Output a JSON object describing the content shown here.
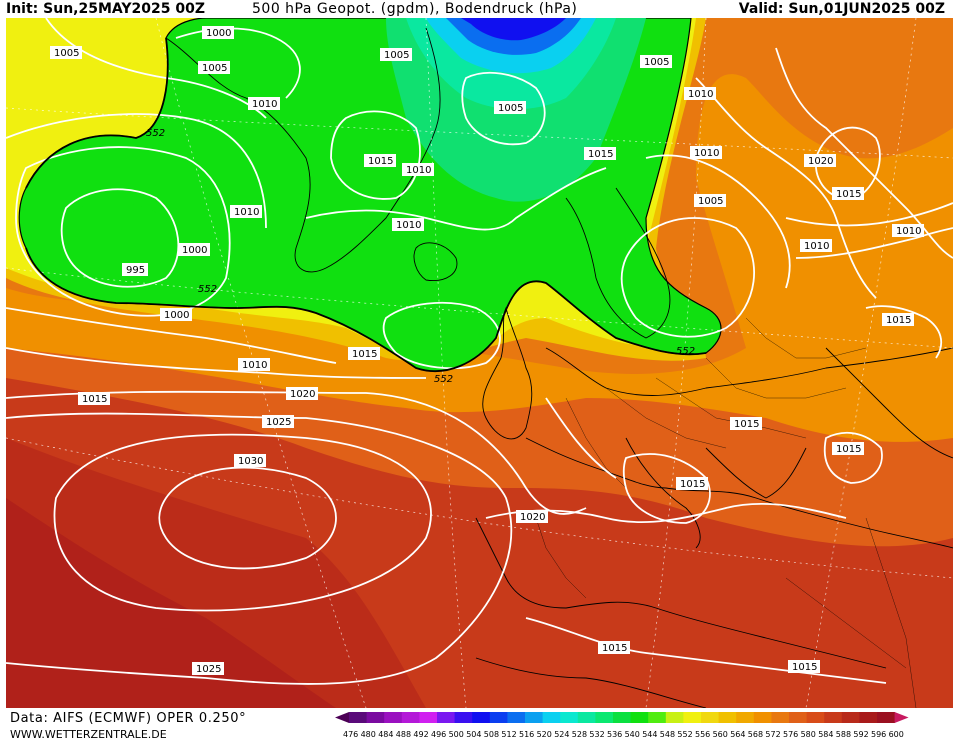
{
  "header": {
    "init": "Init: Sun,25MAY2025 00Z",
    "title": "500 hPa Geopot. (gpdm), Bodendruck (hPa)",
    "valid": "Valid: Sun,01JUN2025 00Z"
  },
  "footer": {
    "source": "Data: AIFS (ECMWF) OPER 0.250°",
    "website": "WWW.WETTERZENTRALE.DE"
  },
  "legend": {
    "values": [
      "476",
      "480",
      "484",
      "488",
      "492",
      "496",
      "500",
      "504",
      "508",
      "512",
      "516",
      "520",
      "524",
      "528",
      "532",
      "536",
      "540",
      "544",
      "548",
      "552",
      "556",
      "560",
      "564",
      "568",
      "572",
      "576",
      "580",
      "584",
      "588",
      "592",
      "596",
      "600"
    ],
    "colors": [
      "#4b0055",
      "#5a0a7a",
      "#7a0aa0",
      "#9a10c0",
      "#b418d8",
      "#d020f0",
      "#7a18f0",
      "#3a10f0",
      "#1010f0",
      "#0a3ef0",
      "#0a6ef0",
      "#0aa0f0",
      "#0ad0f0",
      "#0ae8d0",
      "#0ae8a0",
      "#0ae870",
      "#0ae040",
      "#10e010",
      "#50ec10",
      "#c8f014",
      "#f0f010",
      "#f0d810",
      "#f0c000",
      "#f0a800",
      "#f09000",
      "#e87810",
      "#e06018",
      "#d84c18",
      "#c83a1a",
      "#b82a1a",
      "#a81a1a",
      "#9a1020",
      "#c81a60"
    ]
  },
  "isobar_labels": [
    "1000",
    "1005",
    "1005",
    "1010",
    "1005",
    "1005",
    "1010",
    "1015",
    "1010",
    "1015",
    "1010",
    "1010",
    "1005",
    "1020",
    "1015",
    "1010",
    "1000",
    "995",
    "1000",
    "1005",
    "1010",
    "1015",
    "1010",
    "1015",
    "1020",
    "1025",
    "1030",
    "1020",
    "1015",
    "1015",
    "1015",
    "1015",
    "1015",
    "1025",
    "1010",
    "1015"
  ],
  "contour_labels": [
    "552",
    "552",
    "552",
    "552"
  ],
  "fill_colors": {
    "green": "#10e010",
    "green_light": "#50ec10",
    "yellow": "#f0f010",
    "yellow_orange": "#f0c000",
    "orange": "#f09000",
    "orange_dark": "#e87810",
    "red_orange": "#e06018",
    "red": "#c83a1a",
    "dark_red": "#a81a1a",
    "cyan": "#0ad0f0",
    "blue": "#0a6ef0",
    "deep_blue": "#1010f0"
  }
}
